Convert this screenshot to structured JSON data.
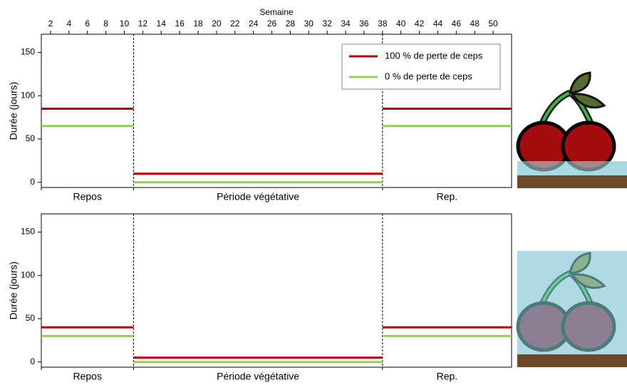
{
  "chart_data": [
    {
      "type": "line",
      "x_label": "Semaine",
      "y_label": "Durée (jours)",
      "x": [
        1,
        11,
        11,
        11,
        38,
        38,
        38,
        52
      ],
      "series": [
        {
          "name": "100 % de perte de ceps",
          "color": "#c00000",
          "values": [
            85,
            85,
            null,
            10,
            10,
            null,
            85,
            85
          ]
        },
        {
          "name": "0 % de perte de ceps",
          "color": "#92d050",
          "values": [
            65,
            65,
            null,
            0,
            0,
            null,
            65,
            65
          ]
        }
      ],
      "xlim": [
        1,
        52
      ],
      "xticks": [
        2,
        4,
        6,
        8,
        10,
        12,
        14,
        16,
        18,
        20,
        22,
        24,
        26,
        28,
        30,
        32,
        34,
        36,
        38,
        40,
        42,
        44,
        46,
        48,
        50
      ],
      "ylim": [
        -6,
        171
      ],
      "yticks": [
        0,
        50,
        100,
        150
      ],
      "vlines": [
        11,
        38
      ],
      "phase_labels": [
        "Repos",
        "Période végétative",
        "Rep."
      ],
      "legend": "upper right"
    },
    {
      "type": "line",
      "y_label": "Durée (jours)",
      "x": [
        1,
        11,
        11,
        11,
        38,
        38,
        38,
        52
      ],
      "series": [
        {
          "color": "#c00000",
          "values": [
            40,
            40,
            null,
            5,
            5,
            null,
            40,
            40
          ]
        },
        {
          "color": "#92d050",
          "values": [
            30,
            30,
            null,
            0,
            0,
            null,
            30,
            30
          ]
        }
      ],
      "xlim": [
        1,
        52
      ],
      "ylim": [
        -6,
        171
      ],
      "yticks": [
        0,
        50,
        100,
        150
      ],
      "vlines": [
        11,
        38
      ],
      "phase_labels": [
        "Repos",
        "Période végétative",
        "Rep."
      ]
    }
  ]
}
